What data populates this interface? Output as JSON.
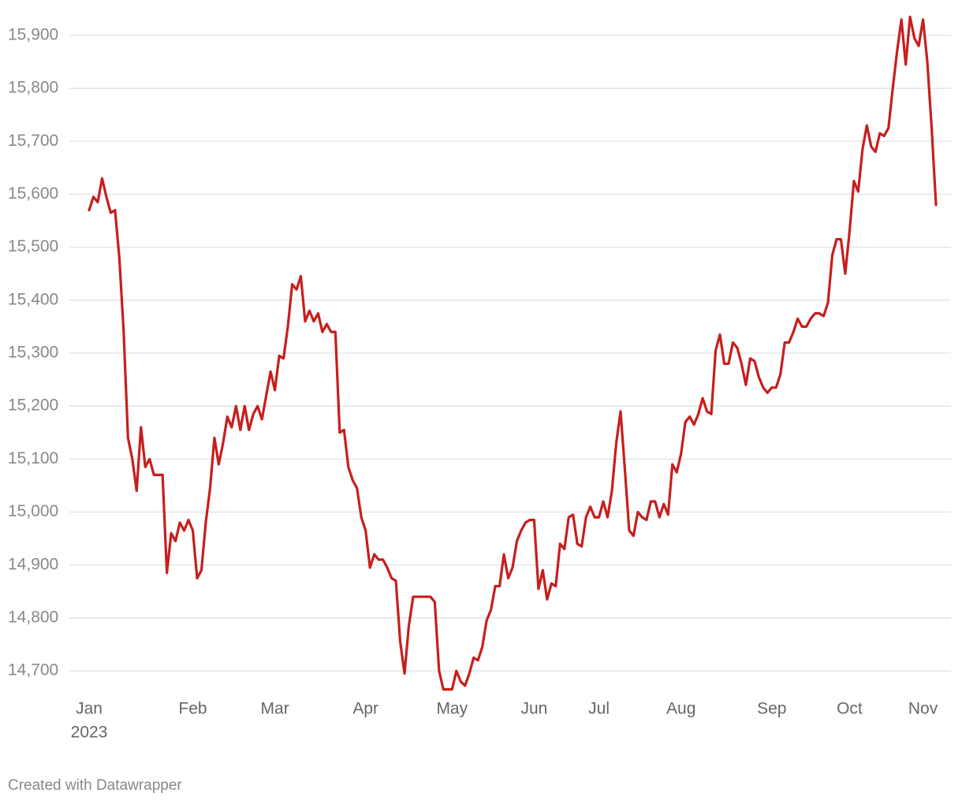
{
  "chart_data": {
    "type": "line",
    "categories": [
      "Jan",
      null,
      null,
      null,
      null,
      null,
      null,
      null,
      null,
      null,
      null,
      null,
      null,
      null,
      null,
      null,
      null,
      null,
      null,
      null,
      null,
      null,
      null,
      null,
      "Feb",
      null,
      null,
      null,
      null,
      null,
      null,
      null,
      null,
      null,
      null,
      null,
      null,
      null,
      null,
      null,
      null,
      null,
      null,
      "Mar",
      null,
      null,
      null,
      null,
      null,
      null,
      null,
      null,
      null,
      null,
      null,
      null,
      null,
      null,
      null,
      null,
      null,
      null,
      null,
      null,
      "Apr",
      null,
      null,
      null,
      null,
      null,
      null,
      null,
      null,
      null,
      null,
      null,
      null,
      null,
      null,
      null,
      null,
      null,
      null,
      null,
      "May",
      null,
      null,
      null,
      null,
      null,
      null,
      null,
      null,
      null,
      null,
      null,
      null,
      null,
      null,
      null,
      null,
      null,
      null,
      "Jun",
      null,
      null,
      null,
      null,
      null,
      null,
      null,
      null,
      null,
      null,
      null,
      null,
      null,
      null,
      "Jul",
      null,
      null,
      null,
      null,
      null,
      null,
      null,
      null,
      null,
      null,
      null,
      null,
      null,
      null,
      null,
      null,
      null,
      null,
      "Aug",
      null,
      null,
      null,
      null,
      null,
      null,
      null,
      null,
      null,
      null,
      null,
      null,
      null,
      null,
      null,
      null,
      null,
      null,
      null,
      null,
      "Sep",
      null,
      null,
      null,
      null,
      null,
      null,
      null,
      null,
      null,
      null,
      null,
      null,
      null,
      null,
      null,
      null,
      null,
      "Oct",
      null,
      null,
      null,
      null,
      null,
      null,
      null,
      null,
      null,
      null,
      null,
      null,
      null,
      null,
      null,
      null,
      "Nov",
      null,
      null,
      null
    ],
    "year_label": "2023",
    "values": [
      15570,
      15595,
      15585,
      15630,
      15595,
      15565,
      15570,
      15480,
      15340,
      15140,
      15100,
      15040,
      15160,
      15085,
      15100,
      15070,
      15070,
      15070,
      14885,
      14960,
      14945,
      14980,
      14965,
      14985,
      14965,
      14875,
      14890,
      14980,
      15045,
      15140,
      15090,
      15130,
      15180,
      15160,
      15200,
      15155,
      15200,
      15155,
      15185,
      15200,
      15175,
      15220,
      15265,
      15230,
      15295,
      15290,
      15350,
      15430,
      15420,
      15445,
      15360,
      15380,
      15360,
      15375,
      15340,
      15355,
      15340,
      15340,
      15150,
      15155,
      15085,
      15060,
      15045,
      14990,
      14965,
      14895,
      14920,
      14910,
      14910,
      14895,
      14875,
      14870,
      14755,
      14695,
      14785,
      14840,
      14840,
      14840,
      14840,
      14840,
      14830,
      14700,
      14665,
      14665,
      14665,
      14700,
      14680,
      14672,
      14695,
      14725,
      14720,
      14745,
      14795,
      14815,
      14860,
      14860,
      14920,
      14875,
      14895,
      14945,
      14965,
      14980,
      14985,
      14985,
      14855,
      14890,
      14835,
      14865,
      14860,
      14940,
      14930,
      14990,
      14995,
      14940,
      14935,
      14990,
      15010,
      14990,
      14990,
      15020,
      14990,
      15040,
      15130,
      15190,
      15080,
      14965,
      14955,
      15000,
      14990,
      14985,
      15020,
      15020,
      14990,
      15015,
      14995,
      15090,
      15075,
      15110,
      15170,
      15180,
      15165,
      15185,
      15215,
      15190,
      15185,
      15305,
      15335,
      15280,
      15280,
      15320,
      15310,
      15280,
      15240,
      15290,
      15285,
      15255,
      15235,
      15225,
      15235,
      15235,
      15260,
      15320,
      15320,
      15340,
      15365,
      15350,
      15350,
      15365,
      15375,
      15375,
      15370,
      15395,
      15485,
      15515,
      15515,
      15450,
      15530,
      15625,
      15605,
      15685,
      15730,
      15690,
      15680,
      15715,
      15710,
      15725,
      15800,
      15870,
      15930,
      15845,
      15935,
      15895,
      15880,
      15930,
      15850,
      15725,
      15580
    ],
    "color": "#c71e1d",
    "ylim": [
      14660,
      15940
    ],
    "yticks": [
      {
        "value": 14700,
        "label": "14,700"
      },
      {
        "value": 14800,
        "label": "14,800"
      },
      {
        "value": 14900,
        "label": "14,900"
      },
      {
        "value": 15000,
        "label": "15,000"
      },
      {
        "value": 15100,
        "label": "15,100"
      },
      {
        "value": 15200,
        "label": "15,200"
      },
      {
        "value": 15300,
        "label": "15,300"
      },
      {
        "value": 15400,
        "label": "15,400"
      },
      {
        "value": 15500,
        "label": "15,500"
      },
      {
        "value": 15600,
        "label": "15,600"
      },
      {
        "value": 15700,
        "label": "15,700"
      },
      {
        "value": 15800,
        "label": "15,800"
      },
      {
        "value": 15900,
        "label": "15,900"
      }
    ],
    "grid": true,
    "credit": "Created with Datawrapper"
  }
}
